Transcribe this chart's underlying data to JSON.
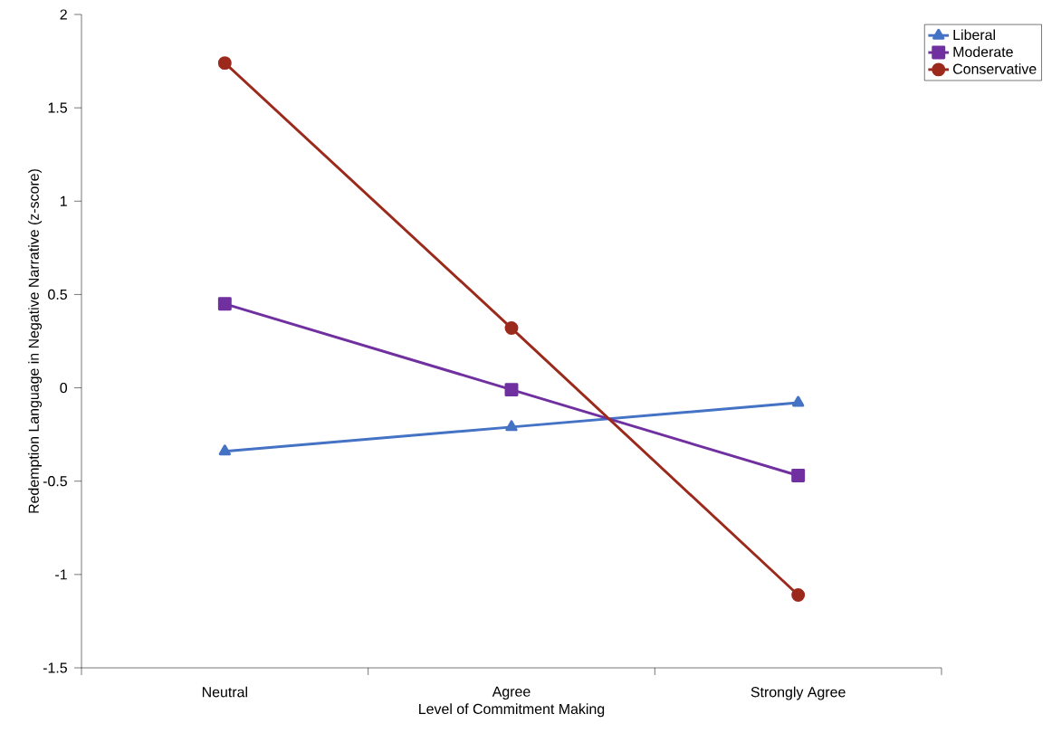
{
  "chart_data": {
    "type": "line",
    "xlabel": "Level of Commitment Making",
    "ylabel": "Redemption Language in Negative Narrative (z-score)",
    "categories": [
      "Neutral",
      "Agree",
      "Strongly Agree"
    ],
    "series": [
      {
        "name": "Liberal",
        "color": "#4472c4",
        "marker": "triangle",
        "values": [
          -0.34,
          -0.21,
          -0.08
        ]
      },
      {
        "name": "Moderate",
        "color": "#7030a0",
        "marker": "square",
        "values": [
          0.45,
          -0.01,
          -0.47
        ]
      },
      {
        "name": "Conservative",
        "color": "#9c2a1c",
        "marker": "circle",
        "values": [
          1.74,
          0.32,
          -1.11
        ]
      }
    ],
    "ylim": [
      -1.5,
      2
    ],
    "yticks": [
      -1.5,
      -1,
      -0.5,
      0,
      0.5,
      1,
      1.5,
      2
    ],
    "legend": "top right",
    "grid": false,
    "line_style": "solid"
  }
}
